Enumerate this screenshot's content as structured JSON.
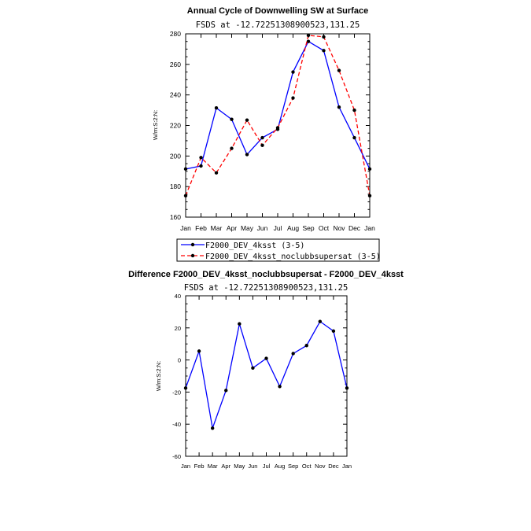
{
  "chart_data": [
    {
      "type": "line",
      "title": "Annual Cycle of Downwelling SW at Surface",
      "subtitle": "FSDS at -12.72251308900523,131.25",
      "ylabel": "W/m:S:2:N:",
      "xlabel": "",
      "categories": [
        "Jan",
        "Feb",
        "Mar",
        "Apr",
        "May",
        "Jun",
        "Jul",
        "Aug",
        "Sep",
        "Oct",
        "Nov",
        "Dec",
        "Jan"
      ],
      "ylim": [
        160,
        280
      ],
      "yticks": [
        160,
        180,
        200,
        220,
        240,
        260,
        280
      ],
      "legend_position": "bottom",
      "series": [
        {
          "name": "F2000_DEV_4ksst (3-5)",
          "color": "#0000ff",
          "dash": "solid",
          "values": [
            191.5,
            193.5,
            231.5,
            224,
            201,
            212,
            217.5,
            255,
            275,
            269,
            232,
            212,
            191.5
          ]
        },
        {
          "name": "F2000_DEV_4ksst_noclubbsupersat (3-5)",
          "color": "#ff0000",
          "dash": "dashed",
          "values": [
            174,
            199,
            189,
            205,
            223.5,
            207,
            218.5,
            238,
            279,
            278,
            256,
            230,
            174
          ]
        }
      ]
    },
    {
      "type": "line",
      "title": "Difference F2000_DEV_4ksst_noclubbsupersat - F2000_DEV_4ksst",
      "subtitle": "FSDS at -12.72251308900523,131.25",
      "ylabel": "W/m:S:2:N:",
      "xlabel": "",
      "categories": [
        "Jan",
        "Feb",
        "Mar",
        "Apr",
        "May",
        "Jun",
        "Jul",
        "Aug",
        "Sep",
        "Oct",
        "Nov",
        "Dec",
        "Jan"
      ],
      "ylim": [
        -60,
        40
      ],
      "yticks": [
        -60,
        -40,
        -20,
        0,
        20,
        40
      ],
      "series": [
        {
          "color": "#0000ff",
          "dash": "solid",
          "values": [
            -17.5,
            5.5,
            -42.5,
            -19,
            22.5,
            -5,
            1,
            -16.5,
            4,
            9,
            24,
            18,
            -17.5
          ]
        }
      ]
    }
  ]
}
